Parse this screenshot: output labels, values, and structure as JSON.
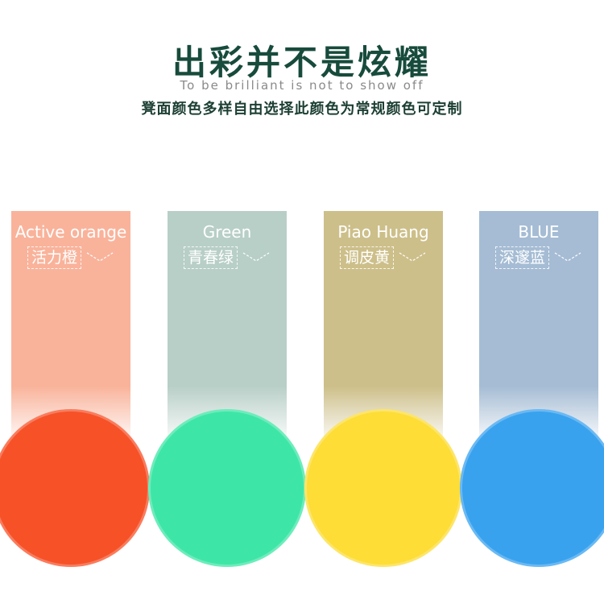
{
  "header": {
    "title": "出彩并不是炫耀",
    "subtitle": "To be brilliant is not to show off",
    "description": "凳面颜色多样自由选择此颜色为常规颜色可定制"
  },
  "colors": [
    {
      "en": "Active orange",
      "cn": "活力橙",
      "panel": "#f9b39b",
      "disc": "#f75128"
    },
    {
      "en": "Green",
      "cn": "青春绿",
      "panel": "#b8cfc7",
      "disc": "#3de6a6"
    },
    {
      "en": "Piao Huang",
      "cn": "调皮黄",
      "panel": "#cdbf8a",
      "disc": "#fddd36"
    },
    {
      "en": "BLUE",
      "cn": "深邃蓝",
      "panel": "#a5bcd4",
      "disc": "#38a2ef"
    }
  ]
}
